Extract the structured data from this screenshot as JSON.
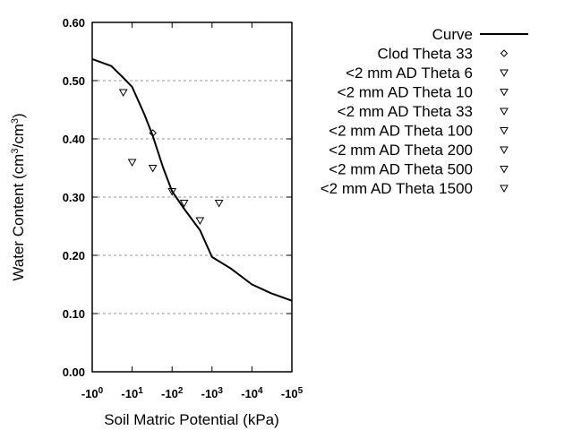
{
  "chart_data": {
    "type": "scatter",
    "title": "",
    "xlabel": "Soil Matric Potential (kPa)",
    "ylabel": {
      "main": "Water Content (cm",
      "sup1": "3",
      "mid": "/cm",
      "sup2": "3",
      "end": ")"
    },
    "x_scale": "log",
    "xlim": [
      1,
      100000
    ],
    "ylim": [
      0,
      0.6
    ],
    "x_ticks": [
      {
        "value": 1,
        "base": "-10",
        "exp": "0"
      },
      {
        "value": 10,
        "base": "-10",
        "exp": "1"
      },
      {
        "value": 100,
        "base": "-10",
        "exp": "2"
      },
      {
        "value": 1000,
        "base": "-10",
        "exp": "3"
      },
      {
        "value": 10000,
        "base": "-10",
        "exp": "4"
      },
      {
        "value": 100000,
        "base": "-10",
        "exp": "5"
      }
    ],
    "y_ticks": [
      {
        "value": 0,
        "label": "0.00"
      },
      {
        "value": 0.1,
        "label": "0.10"
      },
      {
        "value": 0.2,
        "label": "0.20"
      },
      {
        "value": 0.3,
        "label": "0.30"
      },
      {
        "value": 0.4,
        "label": "0.40"
      },
      {
        "value": 0.5,
        "label": "0.50"
      },
      {
        "value": 0.6,
        "label": "0.60"
      }
    ],
    "grid": "horizontal dashed",
    "legend_position": "right",
    "series": [
      {
        "name": "Curve",
        "kind": "line",
        "color": "#000000",
        "x": [
          1,
          3,
          6,
          10,
          20,
          33,
          60,
          100,
          200,
          500,
          1000,
          3000,
          10000,
          30000,
          100000
        ],
        "y": [
          0.537,
          0.525,
          0.505,
          0.489,
          0.443,
          0.405,
          0.35,
          0.31,
          0.28,
          0.243,
          0.197,
          0.177,
          0.15,
          0.135,
          0.122
        ]
      },
      {
        "name": "Clod Theta 33",
        "kind": "diamond",
        "x": [
          33
        ],
        "y": [
          0.41
        ]
      },
      {
        "name": "<2 mm AD Theta 6",
        "kind": "triangle",
        "x": [
          6
        ],
        "y": [
          0.48
        ]
      },
      {
        "name": "<2 mm AD Theta 10",
        "kind": "triangle",
        "x": [
          10
        ],
        "y": [
          0.36
        ]
      },
      {
        "name": "<2 mm AD Theta 33",
        "kind": "triangle",
        "x": [
          33
        ],
        "y": [
          0.35
        ]
      },
      {
        "name": "<2 mm AD Theta 100",
        "kind": "triangle",
        "x": [
          100
        ],
        "y": [
          0.31
        ]
      },
      {
        "name": "<2 mm AD Theta 200",
        "kind": "triangle",
        "x": [
          200
        ],
        "y": [
          0.29
        ]
      },
      {
        "name": "<2 mm AD Theta 500",
        "kind": "triangle",
        "x": [
          500
        ],
        "y": [
          0.26
        ]
      },
      {
        "name": "<2 mm AD Theta 1500",
        "kind": "triangle",
        "x": [
          1500
        ],
        "y": [
          0.29
        ]
      }
    ]
  }
}
